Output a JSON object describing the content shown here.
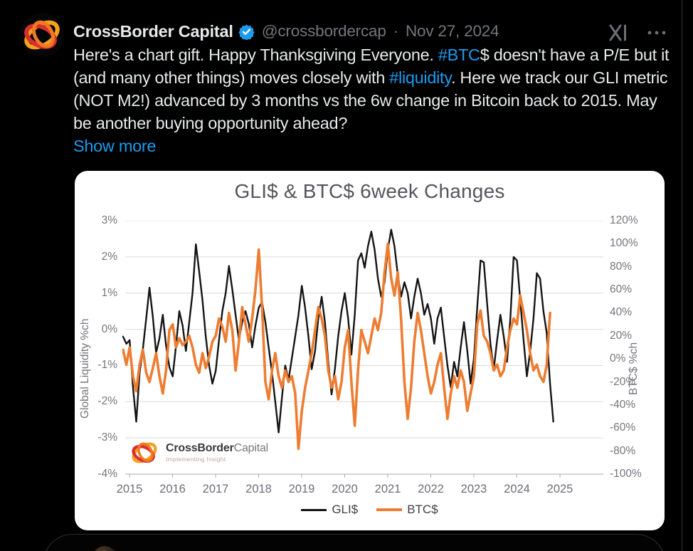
{
  "post": {
    "author": "CrossBorder Capital",
    "handle": "@crossbordercap",
    "separator": "·",
    "date": "Nov 27, 2024",
    "body_segments": [
      {
        "text": "Here's a chart gift. Happy Thanksgiving Everyone. ",
        "link": false
      },
      {
        "text": "#BTC",
        "link": true
      },
      {
        "text": "$ doesn't have a P/E but it (and many other things) moves closely with ",
        "link": false
      },
      {
        "text": "#liquidity",
        "link": true
      },
      {
        "text": ". Here we track our GLI metric (NOT M2!) advanced by 3 months vs the 6w change in Bitcoin back to 2015. May be another buying opportunity ahead?",
        "link": false
      }
    ],
    "show_more": "Show more"
  },
  "icons": {
    "grok": "xai-x-logo",
    "more": "ellipsis",
    "verified": "blue-check-seal",
    "avatar": "crossborder-swirl-logo"
  },
  "watermark": {
    "brand_bold": "CrossBorder",
    "brand_light": "Capital",
    "tagline": "Implementing Insight"
  },
  "colors": {
    "background": "#000000",
    "text": "#e7e9ea",
    "muted": "#71767b",
    "link_blue": "#1d9bf0",
    "card": "#ffffff",
    "grid": "#d9d9d9",
    "gli_line": "#141414",
    "btc_line": "#ed7d31"
  },
  "chart_data": {
    "type": "line",
    "title": "GLI$ & BTC$ 6week Changes",
    "grid": true,
    "legend_position": "bottom-center",
    "left_axis": {
      "label": "Global Liquidity %ch",
      "min": -4,
      "max": 3,
      "ticks": [
        "3%",
        "2%",
        "1%",
        "0%",
        "-1%",
        "-2%",
        "-3%",
        "-4%"
      ]
    },
    "right_axis": {
      "label": "BTC$ %ch",
      "min": -100,
      "max": 120,
      "ticks": [
        "120%",
        "100%",
        "80%",
        "60%",
        "40%",
        "20%",
        "0%",
        "-20%",
        "-40%",
        "-60%",
        "-80%",
        "-100%"
      ]
    },
    "x_ticks": [
      "2015",
      "2016",
      "2017",
      "2018",
      "2019",
      "2020",
      "2021",
      "2022",
      "2023",
      "2024",
      "2025"
    ],
    "x_range": [
      2014.85,
      2026.0
    ],
    "legend": [
      {
        "name": "GLI$",
        "color": "#141414",
        "weight": 3
      },
      {
        "name": "BTC$",
        "color": "#ed7d31",
        "weight": 4
      }
    ],
    "series": [
      {
        "name": "GLI$",
        "axis": "left",
        "color": "#141414",
        "width": 2.4,
        "x0": 2014.85,
        "dx": 0.0769,
        "y": [
          -0.2,
          -0.4,
          -0.3,
          -1.6,
          -2.55,
          -1.2,
          -0.55,
          0.3,
          1.15,
          0.35,
          -0.65,
          -0.25,
          0.4,
          -0.45,
          -1.05,
          -1.3,
          -0.45,
          0.5,
          0.1,
          -0.6,
          0.2,
          1.0,
          2.35,
          1.6,
          0.8,
          -0.2,
          -1.0,
          -1.5,
          -1.15,
          -0.3,
          0.5,
          1.0,
          1.75,
          1.1,
          0.4,
          -0.3,
          0.2,
          0.5,
          0.15,
          -0.5,
          0.1,
          0.6,
          0.75,
          0.2,
          -0.5,
          -1.2,
          -2.0,
          -2.85,
          -1.9,
          -1.0,
          -1.4,
          -0.8,
          -0.2,
          0.4,
          1.2,
          0.6,
          -0.2,
          -1.1,
          -0.6,
          0.3,
          0.9,
          0.2,
          -0.9,
          -1.8,
          -1.1,
          -0.2,
          0.5,
          1.0,
          0.3,
          -0.7,
          0.4,
          1.9,
          2.1,
          1.7,
          2.3,
          2.7,
          2.2,
          1.4,
          0.9,
          1.3,
          2.2,
          2.75,
          2.3,
          1.5,
          0.9,
          1.3,
          1.0,
          0.3,
          0.9,
          1.4,
          1.0,
          0.4,
          0.7,
          0.3,
          -0.4,
          0.3,
          0.6,
          -0.2,
          -1.0,
          -1.6,
          -0.9,
          -1.3,
          -0.5,
          0.2,
          -0.6,
          -1.5,
          -0.8,
          0.6,
          1.9,
          1.85,
          0.7,
          -0.4,
          -1.1,
          -0.3,
          0.4,
          -0.2,
          -0.9,
          0.3,
          2.0,
          1.9,
          0.8,
          -0.3,
          -1.3,
          -0.6,
          0.3,
          1.55,
          1.4,
          0.5,
          -0.1,
          -1.5,
          -2.55
        ]
      },
      {
        "name": "BTC$",
        "axis": "right",
        "color": "#ed7d31",
        "width": 3.6,
        "x0": 2014.85,
        "dx": 0.0769,
        "y": [
          8,
          -5,
          10,
          -15,
          -28,
          -5,
          8,
          -12,
          -20,
          -8,
          5,
          -15,
          -30,
          -10,
          25,
          30,
          10,
          18,
          12,
          15,
          20,
          10,
          -5,
          -12,
          5,
          -8,
          2,
          15,
          20,
          35,
          28,
          15,
          40,
          25,
          -10,
          15,
          45,
          30,
          15,
          35,
          60,
          95,
          45,
          -20,
          -35,
          -10,
          5,
          -15,
          -25,
          -10,
          -20,
          -15,
          -30,
          -78,
          -45,
          -25,
          -10,
          5,
          25,
          45,
          35,
          20,
          -10,
          -25,
          -15,
          -35,
          -20,
          10,
          25,
          -20,
          -58,
          -10,
          25,
          15,
          5,
          20,
          35,
          25,
          40,
          75,
          100,
          70,
          55,
          75,
          35,
          -20,
          -52,
          -25,
          15,
          40,
          25,
          5,
          -15,
          -30,
          -20,
          -5,
          5,
          -25,
          -52,
          -30,
          -15,
          -25,
          -10,
          -20,
          -45,
          -30,
          -15,
          30,
          42,
          20,
          15,
          5,
          -10,
          -5,
          -15,
          -10,
          10,
          25,
          35,
          30,
          55,
          40,
          25,
          5,
          -10,
          -5,
          -15,
          -20,
          -5,
          40
        ]
      }
    ]
  }
}
